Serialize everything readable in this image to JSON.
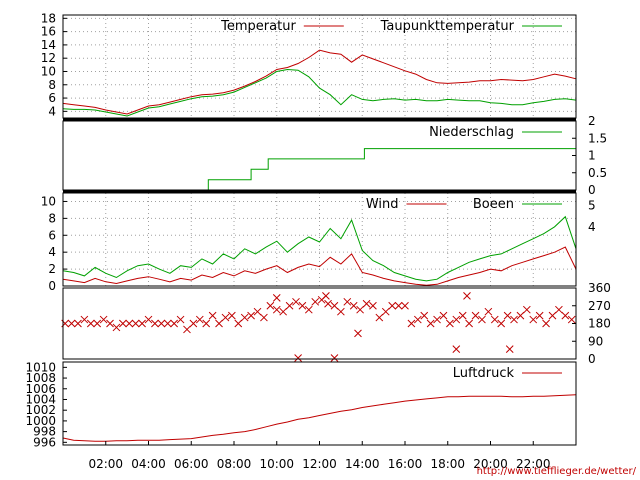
{
  "credit": "http://www.tiefflieger.de/wetter/",
  "colors": {
    "red": "#c00000",
    "green": "#00a000",
    "grid": "#a0a0a0",
    "frame": "#000000"
  },
  "chart_data": [
    {
      "id": "temp",
      "type": "line",
      "ylim": [
        3,
        18.5
      ],
      "yticks": [
        "4",
        "6",
        "8",
        "10",
        "12",
        "14",
        "16",
        "18"
      ],
      "ytick_values": [
        4,
        6,
        8,
        10,
        12,
        14,
        16,
        18
      ],
      "grid": true,
      "legend": "top-right",
      "x_hours": [
        0,
        0.5,
        1,
        1.5,
        2,
        2.5,
        3,
        3.5,
        4,
        4.5,
        5,
        5.5,
        6,
        6.5,
        7,
        7.5,
        8,
        8.5,
        9,
        9.5,
        10,
        10.5,
        11,
        11.5,
        12,
        12.5,
        13,
        13.5,
        14,
        14.5,
        15,
        15.5,
        16,
        16.5,
        17,
        17.5,
        18,
        18.5,
        19,
        19.5,
        20,
        20.5,
        21,
        21.5,
        22,
        22.5,
        23,
        23.5,
        24
      ],
      "series": [
        {
          "name": "Temperatur",
          "color": "#c00000",
          "values": [
            5.2,
            5.0,
            4.8,
            4.6,
            4.2,
            3.9,
            3.6,
            4.2,
            4.8,
            5.0,
            5.4,
            5.8,
            6.2,
            6.5,
            6.6,
            6.8,
            7.2,
            7.8,
            8.5,
            9.3,
            10.3,
            10.6,
            11.2,
            12.1,
            13.2,
            12.8,
            12.6,
            11.4,
            12.5,
            11.9,
            11.3,
            10.7,
            10.1,
            9.6,
            8.8,
            8.3,
            8.2,
            8.3,
            8.4,
            8.6,
            8.6,
            8.8,
            8.7,
            8.6,
            8.8,
            9.2,
            9.6,
            9.3,
            8.9
          ]
        },
        {
          "name": "Taupunkttemperatur",
          "color": "#00a000",
          "values": [
            4.4,
            4.3,
            4.3,
            4.2,
            3.9,
            3.6,
            3.3,
            3.9,
            4.5,
            4.7,
            5.1,
            5.5,
            5.9,
            6.2,
            6.3,
            6.5,
            6.9,
            7.6,
            8.3,
            9.0,
            10.0,
            10.3,
            10.2,
            9.2,
            7.5,
            6.5,
            5.0,
            6.5,
            5.8,
            5.6,
            5.8,
            5.9,
            5.7,
            5.8,
            5.6,
            5.6,
            5.8,
            5.7,
            5.6,
            5.6,
            5.3,
            5.2,
            5.0,
            5.0,
            5.3,
            5.5,
            5.8,
            5.9,
            5.7
          ]
        }
      ]
    },
    {
      "id": "rain",
      "type": "line",
      "ylim": [
        0,
        2
      ],
      "yticks": [
        "0",
        "0.5",
        "1",
        "1.5",
        "2"
      ],
      "ytick_values": [
        0,
        0.5,
        1,
        1.5,
        2
      ],
      "axis_side": "right",
      "legend": "top-right",
      "series": [
        {
          "name": "Niederschlag",
          "color": "#00a000",
          "steps": [
            [
              0,
              0
            ],
            [
              6.8,
              0
            ],
            [
              6.8,
              0.3
            ],
            [
              8.8,
              0.3
            ],
            [
              8.8,
              0.6
            ],
            [
              9.6,
              0.6
            ],
            [
              9.6,
              0.9
            ],
            [
              14.1,
              0.9
            ],
            [
              14.1,
              1.2
            ],
            [
              24,
              1.2
            ]
          ]
        }
      ]
    },
    {
      "id": "wind",
      "type": "line",
      "ylim": [
        0,
        11
      ],
      "yticks": [
        "0",
        "2",
        "4",
        "6",
        "8",
        "10"
      ],
      "ytick_values": [
        0,
        2,
        4,
        6,
        8,
        10
      ],
      "right_ticks": [
        "4",
        "5"
      ],
      "right_tick_values": [
        7,
        9.5
      ],
      "grid": true,
      "legend": "top-right",
      "x_hours": [
        0,
        0.5,
        1,
        1.5,
        2,
        2.5,
        3,
        3.5,
        4,
        4.5,
        5,
        5.5,
        6,
        6.5,
        7,
        7.5,
        8,
        8.5,
        9,
        9.5,
        10,
        10.5,
        11,
        11.5,
        12,
        12.5,
        13,
        13.5,
        14,
        14.5,
        15,
        15.5,
        16,
        16.5,
        17,
        17.5,
        18,
        18.5,
        19,
        19.5,
        20,
        20.5,
        21,
        21.5,
        22,
        22.5,
        23,
        23.5,
        24
      ],
      "series": [
        {
          "name": "Wind",
          "color": "#c00000",
          "values": [
            0.8,
            0.6,
            0.4,
            0.9,
            0.5,
            0.3,
            0.6,
            0.9,
            1.1,
            0.8,
            0.5,
            0.9,
            0.7,
            1.3,
            1.0,
            1.6,
            1.2,
            1.8,
            1.5,
            2.0,
            2.4,
            1.6,
            2.2,
            2.6,
            2.3,
            3.4,
            2.6,
            3.8,
            1.6,
            1.3,
            0.9,
            0.6,
            0.4,
            0.2,
            0.1,
            0.2,
            0.6,
            1.0,
            1.3,
            1.6,
            2.0,
            1.8,
            2.4,
            2.8,
            3.2,
            3.6,
            4.0,
            4.6,
            2.0
          ]
        },
        {
          "name": "Boeen",
          "color": "#00a000",
          "values": [
            1.8,
            1.6,
            1.2,
            2.2,
            1.5,
            1.0,
            1.8,
            2.4,
            2.6,
            2.0,
            1.5,
            2.4,
            2.2,
            3.2,
            2.6,
            3.8,
            3.2,
            4.4,
            3.8,
            4.6,
            5.3,
            4.0,
            5.0,
            5.8,
            5.2,
            6.8,
            5.6,
            7.8,
            4.2,
            3.0,
            2.4,
            1.6,
            1.2,
            0.8,
            0.6,
            0.8,
            1.6,
            2.2,
            2.8,
            3.2,
            3.6,
            3.8,
            4.4,
            5.0,
            5.6,
            6.2,
            7.0,
            8.2,
            4.4
          ]
        }
      ]
    },
    {
      "id": "direction",
      "type": "scatter",
      "ylim": [
        0,
        360
      ],
      "yticks": [
        "0",
        "90",
        "180",
        "270",
        "360"
      ],
      "ytick_values": [
        0,
        90,
        180,
        270,
        360
      ],
      "axis_side": "right",
      "marker": "x",
      "color": "#c00000",
      "points": [
        [
          0.1,
          180
        ],
        [
          0.4,
          180
        ],
        [
          0.7,
          180
        ],
        [
          1.0,
          200
        ],
        [
          1.3,
          180
        ],
        [
          1.6,
          180
        ],
        [
          1.9,
          200
        ],
        [
          2.2,
          180
        ],
        [
          2.5,
          160
        ],
        [
          2.8,
          180
        ],
        [
          3.1,
          180
        ],
        [
          3.4,
          180
        ],
        [
          3.7,
          180
        ],
        [
          4.0,
          200
        ],
        [
          4.3,
          180
        ],
        [
          4.6,
          180
        ],
        [
          4.9,
          180
        ],
        [
          5.2,
          180
        ],
        [
          5.5,
          200
        ],
        [
          5.8,
          150
        ],
        [
          6.1,
          180
        ],
        [
          6.4,
          200
        ],
        [
          6.7,
          180
        ],
        [
          7.0,
          220
        ],
        [
          7.3,
          180
        ],
        [
          7.6,
          210
        ],
        [
          7.9,
          220
        ],
        [
          8.2,
          180
        ],
        [
          8.5,
          210
        ],
        [
          8.8,
          220
        ],
        [
          9.1,
          240
        ],
        [
          9.4,
          210
        ],
        [
          9.7,
          270
        ],
        [
          10.0,
          250
        ],
        [
          10.3,
          240
        ],
        [
          10.6,
          270
        ],
        [
          10.9,
          290
        ],
        [
          11.2,
          270
        ],
        [
          11.5,
          250
        ],
        [
          11.8,
          290
        ],
        [
          12.1,
          300
        ],
        [
          12.4,
          280
        ],
        [
          12.7,
          270
        ],
        [
          13.0,
          240
        ],
        [
          13.3,
          290
        ],
        [
          13.6,
          270
        ],
        [
          13.9,
          250
        ],
        [
          14.2,
          280
        ],
        [
          14.5,
          270
        ],
        [
          14.8,
          210
        ],
        [
          15.1,
          240
        ],
        [
          15.4,
          270
        ],
        [
          15.7,
          270
        ],
        [
          16.0,
          270
        ],
        [
          16.3,
          180
        ],
        [
          16.6,
          200
        ],
        [
          16.9,
          220
        ],
        [
          17.2,
          180
        ],
        [
          17.5,
          200
        ],
        [
          17.8,
          220
        ],
        [
          18.1,
          180
        ],
        [
          18.4,
          200
        ],
        [
          18.7,
          220
        ],
        [
          19.0,
          180
        ],
        [
          19.3,
          220
        ],
        [
          19.6,
          200
        ],
        [
          19.9,
          240
        ],
        [
          20.2,
          200
        ],
        [
          20.5,
          180
        ],
        [
          20.8,
          220
        ],
        [
          21.1,
          200
        ],
        [
          21.4,
          220
        ],
        [
          21.7,
          250
        ],
        [
          22.0,
          200
        ],
        [
          22.3,
          220
        ],
        [
          22.6,
          180
        ],
        [
          22.9,
          220
        ],
        [
          23.2,
          250
        ],
        [
          23.5,
          220
        ],
        [
          23.8,
          200
        ],
        [
          11.0,
          5
        ],
        [
          12.7,
          5
        ],
        [
          13.8,
          130
        ],
        [
          18.4,
          50
        ],
        [
          18.9,
          320
        ],
        [
          20.9,
          50
        ],
        [
          10.0,
          310
        ],
        [
          12.3,
          320
        ]
      ]
    },
    {
      "id": "pressure",
      "type": "line",
      "ylim": [
        995.5,
        1011
      ],
      "yticks": [
        "996",
        "998",
        "1000",
        "1002",
        "1004",
        "1006",
        "1008",
        "1010"
      ],
      "ytick_values": [
        996,
        998,
        1000,
        1002,
        1004,
        1006,
        1008,
        1010
      ],
      "legend": "top-right",
      "x_hours": [
        0,
        0.5,
        1,
        1.5,
        2,
        2.5,
        3,
        3.5,
        4,
        4.5,
        5,
        5.5,
        6,
        6.5,
        7,
        7.5,
        8,
        8.5,
        9,
        9.5,
        10,
        10.5,
        11,
        11.5,
        12,
        12.5,
        13,
        13.5,
        14,
        14.5,
        15,
        15.5,
        16,
        16.5,
        17,
        17.5,
        18,
        18.5,
        19,
        19.5,
        20,
        20.5,
        21,
        21.5,
        22,
        22.5,
        23,
        23.5,
        24
      ],
      "series": [
        {
          "name": "Luftdruck",
          "color": "#c00000",
          "values": [
            996.8,
            996.4,
            996.3,
            996.2,
            996.2,
            996.3,
            996.3,
            996.4,
            996.4,
            996.4,
            996.5,
            996.6,
            996.7,
            997.0,
            997.3,
            997.5,
            997.8,
            998.0,
            998.4,
            998.9,
            999.4,
            999.8,
            1000.3,
            1000.6,
            1001.0,
            1001.4,
            1001.8,
            1002.1,
            1002.5,
            1002.8,
            1003.1,
            1003.4,
            1003.7,
            1003.9,
            1004.1,
            1004.3,
            1004.5,
            1004.5,
            1004.6,
            1004.6,
            1004.6,
            1004.6,
            1004.5,
            1004.5,
            1004.6,
            1004.6,
            1004.7,
            1004.8,
            1004.9
          ]
        }
      ]
    }
  ],
  "xaxis": {
    "ticks": [
      "02:00",
      "04:00",
      "06:00",
      "08:00",
      "10:00",
      "12:00",
      "14:00",
      "16:00",
      "18:00",
      "20:00",
      "22:00"
    ],
    "tick_hours": [
      2,
      4,
      6,
      8,
      10,
      12,
      14,
      16,
      18,
      20,
      22
    ],
    "range_hours": [
      0,
      24
    ]
  }
}
